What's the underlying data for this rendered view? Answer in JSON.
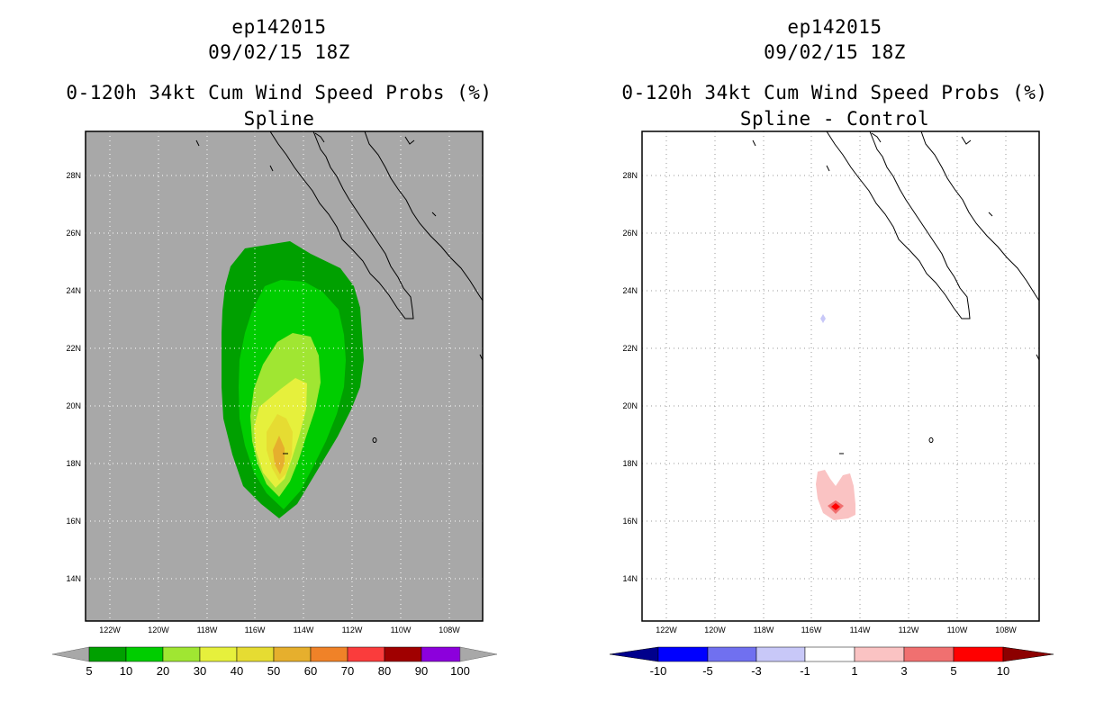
{
  "left": {
    "storm_id": "ep142015",
    "date": "09/02/15 18Z",
    "product": "0-120h 34kt Cum Wind Speed Probs (%)",
    "subtitle": "Spline",
    "background_color": "#a8a8a8",
    "lat_labels": [
      "28N",
      "26N",
      "24N",
      "22N",
      "20N",
      "18N",
      "16N",
      "14N"
    ],
    "lon_labels": [
      "122W",
      "120W",
      "118W",
      "116W",
      "114W",
      "112W",
      "110W",
      "108W"
    ],
    "colorbar": {
      "colors": [
        "#00a000",
        "#00cd00",
        "#a0e632",
        "#e6f03c",
        "#e6dc32",
        "#e6af2d",
        "#f08228",
        "#fa3c3c",
        "#a00000",
        "#8c00dc"
      ],
      "end_colors": [
        "#a8a8a8",
        "#a8a8a8"
      ],
      "labels": [
        "5",
        "10",
        "20",
        "30",
        "40",
        "50",
        "60",
        "70",
        "80",
        "90",
        "100"
      ]
    },
    "probability_contours_percent": [
      5,
      10,
      20,
      30,
      40,
      50
    ]
  },
  "right": {
    "storm_id": "ep142015",
    "date": "09/02/15 18Z",
    "product": "0-120h 34kt Cum Wind Speed Probs (%)",
    "subtitle": "Spline - Control",
    "background_color": "#ffffff",
    "lat_labels": [
      "28N",
      "26N",
      "24N",
      "22N",
      "20N",
      "18N",
      "16N",
      "14N"
    ],
    "lon_labels": [
      "122W",
      "120W",
      "118W",
      "116W",
      "114W",
      "112W",
      "110W",
      "108W"
    ],
    "colorbar": {
      "colors": [
        "#0000ff",
        "#7070f0",
        "#c8c8f8",
        "#ffffff",
        "#fac3c3",
        "#f07070",
        "#ff0000"
      ],
      "end_colors": [
        "#00008c",
        "#8c0000"
      ],
      "labels": [
        "-10",
        "-5",
        "-3",
        "-1",
        "1",
        "3",
        "5",
        "10"
      ]
    },
    "difference_contours_percent": [
      -1,
      1,
      3,
      5
    ]
  }
}
